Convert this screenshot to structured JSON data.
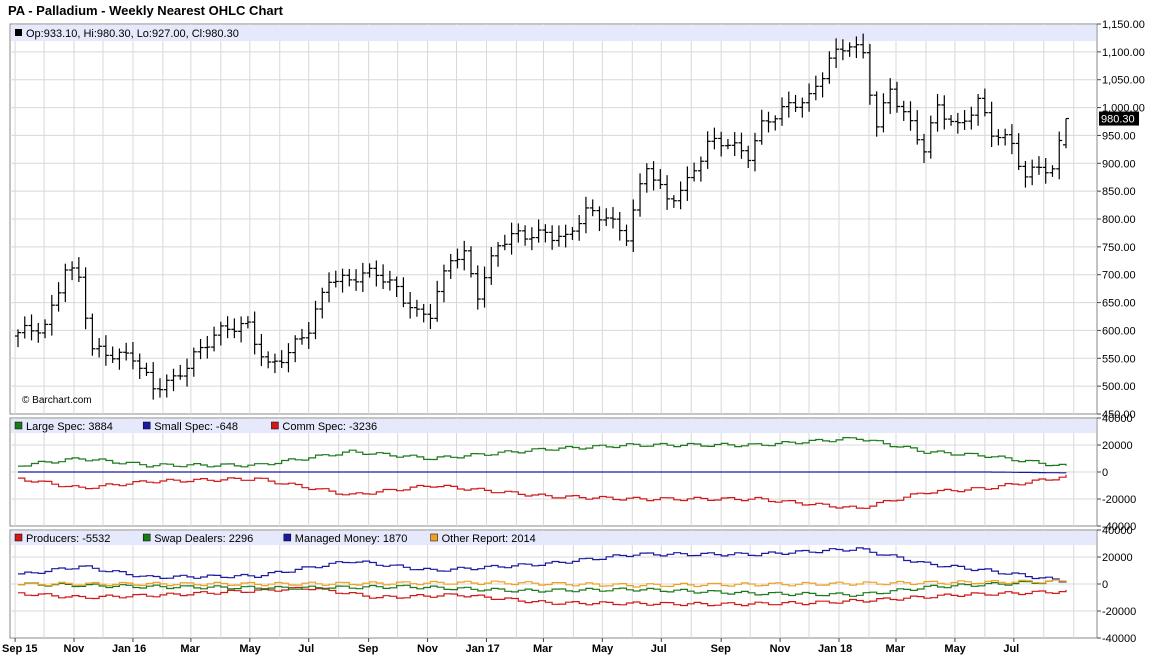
{
  "title": "PA - Palladium - Weekly Nearest OHLC Chart",
  "watermark": "© Barchart.com",
  "colors": {
    "legend_bg": "#e6e8fb",
    "grid": "#d8d8d8",
    "price_bar": "#000000",
    "large_spec": "#1a7a1a",
    "small_spec": "#1a1aa0",
    "comm_spec": "#d01818",
    "producers": "#d01818",
    "swap_dealers": "#1a7a1a",
    "managed_money": "#1a1aa0",
    "other_report": "#f0a020",
    "last_price_bg": "#000000"
  },
  "panels": {
    "price": {
      "legend": "Op:933.10, Hi:980.30, Lo:927.00, Cl:980.30",
      "last_price_label": "980.30",
      "yticks": [
        "1,150.00",
        "1,100.00",
        "1,050.00",
        "1,000.00",
        "950.00",
        "900.00",
        "850.00",
        "800.00",
        "750.00",
        "700.00",
        "650.00",
        "600.00",
        "550.00",
        "500.00",
        "450.00"
      ]
    },
    "cot1": {
      "legend": [
        {
          "label": "Large Spec: 3884",
          "color": "#1a7a1a"
        },
        {
          "label": "Small Spec: -648",
          "color": "#1a1aa0"
        },
        {
          "label": "Comm Spec: -3236",
          "color": "#d01818"
        }
      ],
      "yticks": [
        "40000",
        "20000",
        "0",
        "-20000",
        "-40000"
      ]
    },
    "cot2": {
      "legend": [
        {
          "label": "Producers: -5532",
          "color": "#d01818"
        },
        {
          "label": "Swap Dealers: 2296",
          "color": "#1a7a1a"
        },
        {
          "label": "Managed Money: 1870",
          "color": "#1a1aa0"
        },
        {
          "label": "Other Report: 2014",
          "color": "#f0a020"
        }
      ],
      "yticks": [
        "40000",
        "20000",
        "0",
        "-20000",
        "-40000"
      ]
    }
  },
  "x_labels": [
    "Sep 15",
    "Nov",
    "Jan 16",
    "Mar",
    "May",
    "Jul",
    "Sep",
    "Nov",
    "Jan 17",
    "Mar",
    "May",
    "Jul",
    "Sep",
    "Nov",
    "Jan 18",
    "Mar",
    "May",
    "Jul"
  ],
  "chart_data": [
    {
      "type": "ohlc",
      "title": "PA - Palladium - Weekly Nearest OHLC Chart",
      "x_start": "2015-09-04",
      "x_end": "2018-08-24",
      "frequency": "weekly",
      "ylim": [
        450,
        1150
      ],
      "last": {
        "open": 933.1,
        "high": 980.3,
        "low": 927.0,
        "close": 980.3
      },
      "close_path": [
        [
          "2015-09-04",
          590
        ],
        [
          "2015-10-02",
          610
        ],
        [
          "2015-10-23",
          715
        ],
        [
          "2015-11-06",
          690
        ],
        [
          "2015-11-20",
          560
        ],
        [
          "2015-12-31",
          560
        ],
        [
          "2016-01-22",
          490
        ],
        [
          "2016-02-12",
          510
        ],
        [
          "2016-03-04",
          560
        ],
        [
          "2016-03-25",
          590
        ],
        [
          "2016-04-29",
          610
        ],
        [
          "2016-05-20",
          540
        ],
        [
          "2016-06-10",
          555
        ],
        [
          "2016-07-01",
          600
        ],
        [
          "2016-07-22",
          700
        ],
        [
          "2016-08-12",
          690
        ],
        [
          "2016-09-09",
          700
        ],
        [
          "2016-09-30",
          680
        ],
        [
          "2016-10-21",
          630
        ],
        [
          "2016-11-04",
          625
        ],
        [
          "2016-11-25",
          730
        ],
        [
          "2016-12-09",
          740
        ],
        [
          "2016-12-23",
          670
        ],
        [
          "2017-01-13",
          750
        ],
        [
          "2017-02-03",
          770
        ],
        [
          "2017-03-03",
          780
        ],
        [
          "2017-03-24",
          760
        ],
        [
          "2017-04-14",
          810
        ],
        [
          "2017-05-05",
          810
        ],
        [
          "2017-05-26",
          770
        ],
        [
          "2017-06-16",
          890
        ],
        [
          "2017-07-07",
          835
        ],
        [
          "2017-07-28",
          870
        ],
        [
          "2017-08-18",
          930
        ],
        [
          "2017-09-08",
          935
        ],
        [
          "2017-09-29",
          920
        ],
        [
          "2017-10-13",
          970
        ],
        [
          "2017-11-03",
          990
        ],
        [
          "2017-12-01",
          1020
        ],
        [
          "2017-12-22",
          1090
        ],
        [
          "2018-01-12",
          1110
        ],
        [
          "2018-01-26",
          1090
        ],
        [
          "2018-02-09",
          970
        ],
        [
          "2018-02-23",
          1040
        ],
        [
          "2018-03-09",
          990
        ],
        [
          "2018-03-30",
          920
        ],
        [
          "2018-04-13",
          1000
        ],
        [
          "2018-05-04",
          970
        ],
        [
          "2018-05-25",
          1010
        ],
        [
          "2018-06-08",
          950
        ],
        [
          "2018-06-29",
          935
        ],
        [
          "2018-07-13",
          880
        ],
        [
          "2018-07-27",
          900
        ],
        [
          "2018-08-10",
          880
        ],
        [
          "2018-08-17",
          930
        ],
        [
          "2018-08-24",
          980.3
        ]
      ]
    },
    {
      "type": "line",
      "panel": "Legacy COT",
      "ylim": [
        -40000,
        40000
      ],
      "series": [
        {
          "name": "Large Spec",
          "color": "#1a7a1a",
          "path": [
            [
              "2015-09-04",
              5000
            ],
            [
              "2015-11-06",
              10000
            ],
            [
              "2016-01-15",
              5000
            ],
            [
              "2016-05-06",
              5000
            ],
            [
              "2016-08-12",
              15000
            ],
            [
              "2016-11-04",
              10000
            ],
            [
              "2017-03-03",
              17000
            ],
            [
              "2017-06-02",
              20000
            ],
            [
              "2017-10-06",
              20000
            ],
            [
              "2018-01-19",
              25000
            ],
            [
              "2018-03-30",
              15000
            ],
            [
              "2018-06-01",
              12000
            ],
            [
              "2018-08-24",
              3884
            ]
          ]
        },
        {
          "name": "Small Spec",
          "color": "#1a1aa0",
          "path": [
            [
              "2015-09-04",
              0
            ],
            [
              "2016-09-02",
              0
            ],
            [
              "2017-09-01",
              0
            ],
            [
              "2018-06-01",
              0
            ],
            [
              "2018-08-24",
              -648
            ]
          ]
        },
        {
          "name": "Comm Spec",
          "color": "#d01818",
          "path": [
            [
              "2015-09-04",
              -5000
            ],
            [
              "2015-11-06",
              -12000
            ],
            [
              "2016-01-15",
              -7000
            ],
            [
              "2016-05-06",
              -5000
            ],
            [
              "2016-08-12",
              -17000
            ],
            [
              "2016-11-04",
              -10000
            ],
            [
              "2017-03-03",
              -18000
            ],
            [
              "2017-06-02",
              -20000
            ],
            [
              "2017-10-06",
              -20000
            ],
            [
              "2018-01-19",
              -27000
            ],
            [
              "2018-03-30",
              -15000
            ],
            [
              "2018-06-01",
              -12000
            ],
            [
              "2018-08-24",
              -3236
            ]
          ]
        }
      ]
    },
    {
      "type": "line",
      "panel": "Disaggregated COT",
      "ylim": [
        -40000,
        40000
      ],
      "series": [
        {
          "name": "Producers",
          "color": "#d01818",
          "path": [
            [
              "2015-09-04",
              -7000
            ],
            [
              "2015-11-06",
              -10000
            ],
            [
              "2016-02-05",
              -8000
            ],
            [
              "2016-07-01",
              -3000
            ],
            [
              "2016-09-09",
              -10000
            ],
            [
              "2016-12-02",
              -8000
            ],
            [
              "2017-03-03",
              -14000
            ],
            [
              "2017-09-01",
              -15000
            ],
            [
              "2017-12-01",
              -14000
            ],
            [
              "2018-02-02",
              -12000
            ],
            [
              "2018-05-04",
              -8000
            ],
            [
              "2018-08-24",
              -5532
            ]
          ]
        },
        {
          "name": "Swap Dealers",
          "color": "#1a7a1a",
          "path": [
            [
              "2015-09-04",
              0
            ],
            [
              "2016-01-15",
              -2000
            ],
            [
              "2016-06-03",
              -3000
            ],
            [
              "2016-10-07",
              -2000
            ],
            [
              "2017-02-03",
              -5000
            ],
            [
              "2017-06-02",
              -4000
            ],
            [
              "2017-10-06",
              -7000
            ],
            [
              "2018-01-19",
              -8000
            ],
            [
              "2018-04-06",
              -2000
            ],
            [
              "2018-08-24",
              2296
            ]
          ]
        },
        {
          "name": "Managed Money",
          "color": "#1a1aa0",
          "path": [
            [
              "2015-09-04",
              7000
            ],
            [
              "2015-11-06",
              13000
            ],
            [
              "2016-01-15",
              5000
            ],
            [
              "2016-05-06",
              6000
            ],
            [
              "2016-08-12",
              17000
            ],
            [
              "2016-11-04",
              10000
            ],
            [
              "2017-03-03",
              15000
            ],
            [
              "2017-06-02",
              22000
            ],
            [
              "2017-10-06",
              22000
            ],
            [
              "2018-01-19",
              26000
            ],
            [
              "2018-03-30",
              15000
            ],
            [
              "2018-06-01",
              10000
            ],
            [
              "2018-08-24",
              1870
            ]
          ]
        },
        {
          "name": "Other Report",
          "color": "#f0a020",
          "path": [
            [
              "2015-09-04",
              0
            ],
            [
              "2016-06-03",
              0
            ],
            [
              "2017-01-06",
              1000
            ],
            [
              "2017-06-02",
              -1000
            ],
            [
              "2017-12-01",
              0
            ],
            [
              "2018-08-24",
              2014
            ]
          ]
        }
      ]
    }
  ]
}
